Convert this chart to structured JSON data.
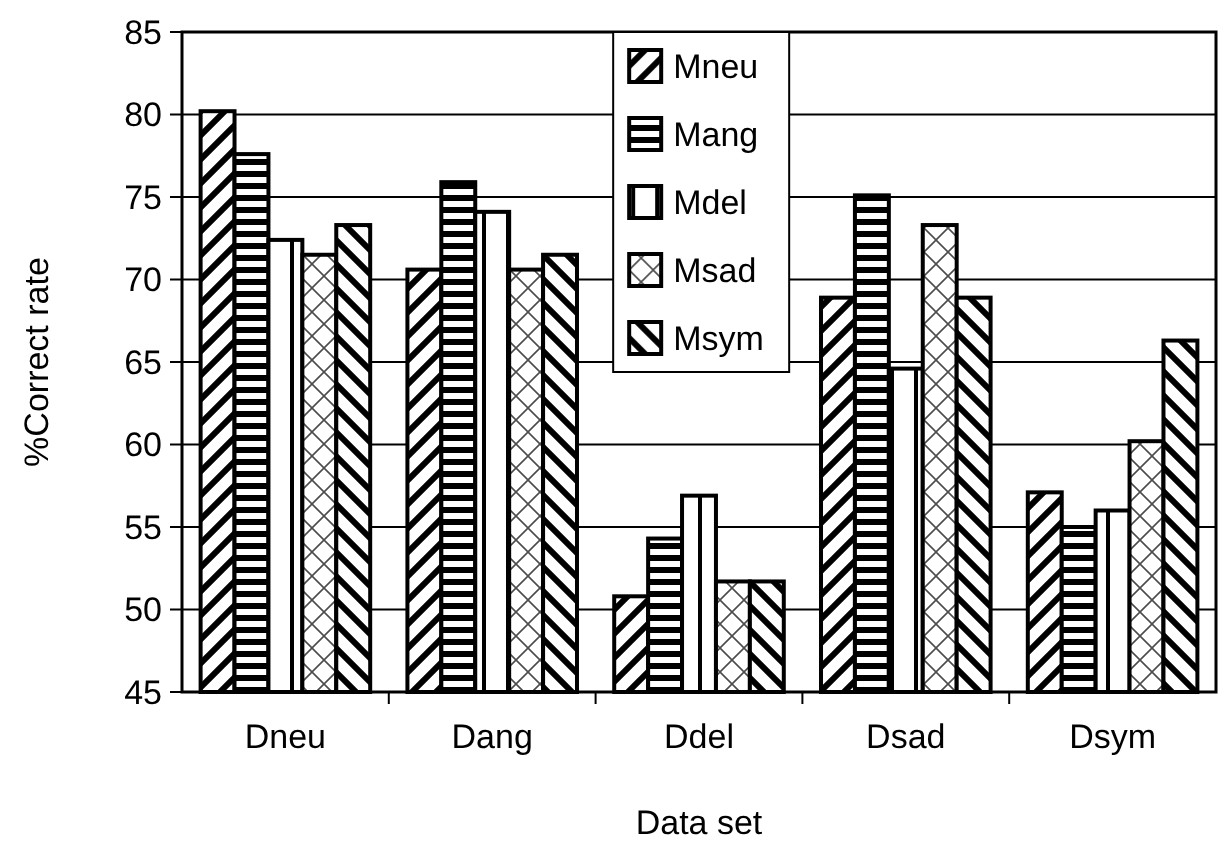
{
  "chart_data": {
    "type": "bar",
    "xlabel": "Data set",
    "ylabel": "%Correct rate",
    "categories": [
      "Dneu",
      "Dang",
      "Ddel",
      "Dsad",
      "Dsym"
    ],
    "series": [
      {
        "name": "Mneu",
        "color": "#000000",
        "values": [
          80.2,
          70.6,
          50.8,
          68.9,
          57.1
        ]
      },
      {
        "name": "Mang",
        "color": "#000000",
        "values": [
          77.6,
          75.9,
          54.3,
          75.1,
          55.0
        ]
      },
      {
        "name": "Mdel",
        "color": "#000000",
        "values": [
          72.4,
          74.1,
          56.9,
          64.6,
          56.0
        ]
      },
      {
        "name": "Msad",
        "color": "#000000",
        "values": [
          71.5,
          70.6,
          51.7,
          73.3,
          60.2
        ]
      },
      {
        "name": "Msym",
        "color": "#000000",
        "values": [
          73.3,
          71.5,
          51.7,
          68.9,
          66.3
        ]
      }
    ],
    "ylim": [
      45,
      85
    ],
    "yticks": [
      45,
      50,
      55,
      60,
      65,
      70,
      75,
      80,
      85
    ],
    "grid": "y",
    "legend": "top"
  }
}
